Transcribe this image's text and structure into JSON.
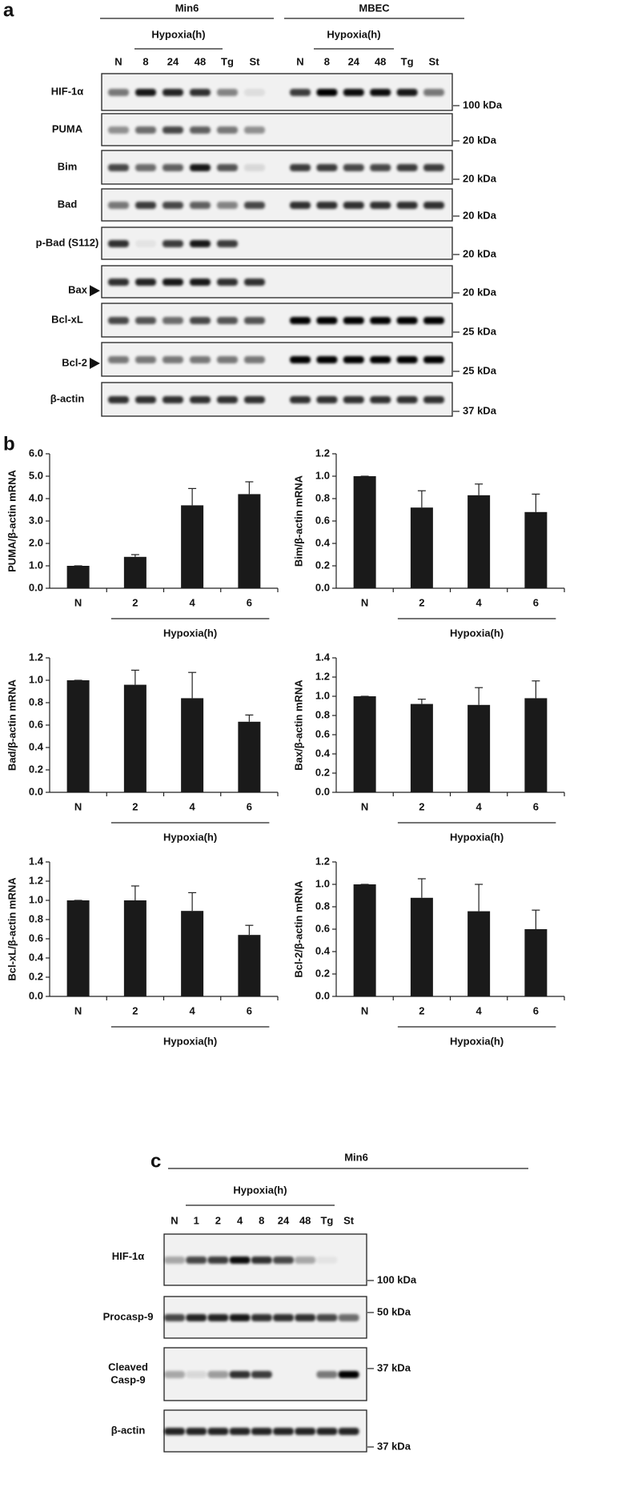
{
  "panel_a": {
    "label": "a",
    "groups": [
      {
        "name": "Min6",
        "hypoxia": "Hypoxia(h)",
        "lanes": [
          "N",
          "8",
          "24",
          "48",
          "Tg",
          "St"
        ]
      },
      {
        "name": "MBEC",
        "hypoxia": "Hypoxia(h)",
        "lanes": [
          "N",
          "8",
          "24",
          "48",
          "Tg",
          "St"
        ]
      }
    ],
    "rows": [
      {
        "label": "HIF-1α",
        "marker": "100 kDa"
      },
      {
        "label": "PUMA",
        "marker": "20 kDa"
      },
      {
        "label": "Bim",
        "marker": "20 kDa"
      },
      {
        "label": "Bad",
        "marker": "20 kDa"
      },
      {
        "label": "p-Bad (S112)",
        "marker": "20 kDa"
      },
      {
        "label": "Bax",
        "marker": "20 kDa",
        "arrow": true
      },
      {
        "label": "Bcl-xL",
        "marker": "25 kDa"
      },
      {
        "label": "Bcl-2",
        "marker": "25 kDa",
        "arrow": true
      },
      {
        "label": "β-actin",
        "marker": "37 kDa"
      }
    ]
  },
  "panel_b": {
    "label": "b"
  },
  "chart_data": [
    {
      "type": "bar",
      "ylabel": "PUMA/β-actin mRNA",
      "categories": [
        "N",
        "2",
        "4",
        "6"
      ],
      "group_label": "Hypoxia(h)",
      "values": [
        1.0,
        1.4,
        3.7,
        4.2
      ],
      "errors": [
        0,
        0.1,
        0.75,
        0.55
      ],
      "color": "#1a1a1a",
      "ylim": [
        0,
        6
      ],
      "yticks": [
        {
          "value": 0,
          "label": "0.0"
        },
        {
          "value": 1,
          "label": "1.0"
        },
        {
          "value": 2,
          "label": "2.0"
        },
        {
          "value": 3,
          "label": "3.0"
        },
        {
          "value": 4,
          "label": "4.0"
        },
        {
          "value": 5,
          "label": "5.0"
        },
        {
          "value": 6,
          "label": "6.0"
        }
      ]
    },
    {
      "type": "bar",
      "ylabel": "Bim/β-actin mRNA",
      "categories": [
        "N",
        "2",
        "4",
        "6"
      ],
      "group_label": "Hypoxia(h)",
      "values": [
        1.0,
        0.72,
        0.83,
        0.68
      ],
      "errors": [
        0,
        0.15,
        0.1,
        0.16
      ],
      "color": "#1a1a1a",
      "ylim": [
        0,
        1.2
      ],
      "yticks": [
        {
          "value": 0,
          "label": "0.0"
        },
        0.2,
        0.4,
        0.6,
        0.8,
        {
          "value": 1,
          "label": "1.0"
        },
        1.2
      ]
    },
    {
      "type": "bar",
      "ylabel": "Bad/β-actin mRNA",
      "categories": [
        "N",
        "2",
        "4",
        "6"
      ],
      "group_label": "Hypoxia(h)",
      "values": [
        1.0,
        0.96,
        0.84,
        0.63
      ],
      "errors": [
        0,
        0.13,
        0.23,
        0.06
      ],
      "color": "#1a1a1a",
      "ylim": [
        0,
        1.2
      ],
      "yticks": [
        {
          "value": 0,
          "label": "0.0"
        },
        0.2,
        0.4,
        0.6,
        0.8,
        {
          "value": 1,
          "label": "1.0"
        },
        1.2
      ]
    },
    {
      "type": "bar",
      "ylabel": "Bax/β-actin mRNA",
      "categories": [
        "N",
        "2",
        "4",
        "6"
      ],
      "group_label": "Hypoxia(h)",
      "values": [
        1.0,
        0.92,
        0.91,
        0.98
      ],
      "errors": [
        0,
        0.05,
        0.18,
        0.18
      ],
      "color": "#1a1a1a",
      "ylim": [
        0,
        1.4
      ],
      "yticks": [
        {
          "value": 0,
          "label": "0.0"
        },
        0.2,
        0.4,
        0.6,
        0.8,
        {
          "value": 1,
          "label": "1.0"
        },
        1.2,
        1.4
      ]
    },
    {
      "type": "bar",
      "ylabel": "Bcl-xL/β-actin mRNA",
      "categories": [
        "N",
        "2",
        "4",
        "6"
      ],
      "group_label": "Hypoxia(h)",
      "values": [
        1.0,
        1.0,
        0.89,
        0.64
      ],
      "errors": [
        0,
        0.15,
        0.19,
        0.1
      ],
      "color": "#1a1a1a",
      "ylim": [
        0,
        1.4
      ],
      "yticks": [
        {
          "value": 0,
          "label": "0.0"
        },
        0.2,
        0.4,
        0.6,
        0.8,
        {
          "value": 1,
          "label": "1.0"
        },
        1.2,
        1.4
      ]
    },
    {
      "type": "bar",
      "ylabel": "Bcl-2/β-actin mRNA",
      "categories": [
        "N",
        "2",
        "4",
        "6"
      ],
      "group_label": "Hypoxia(h)",
      "values": [
        1.0,
        0.88,
        0.76,
        0.6
      ],
      "errors": [
        0,
        0.17,
        0.24,
        0.17
      ],
      "color": "#1a1a1a",
      "ylim": [
        0,
        1.2
      ],
      "yticks": [
        {
          "value": 0,
          "label": "0.0"
        },
        0.2,
        0.4,
        0.6,
        0.8,
        {
          "value": 1,
          "label": "1.0"
        },
        1.2
      ]
    }
  ],
  "panel_c": {
    "label": "c",
    "group": "Min6",
    "hypoxia": "Hypoxia(h)",
    "lanes": [
      "N",
      "1",
      "2",
      "4",
      "8",
      "24",
      "48",
      "Tg",
      "St"
    ],
    "rows": [
      {
        "label": "HIF-1α",
        "marker": "100 kDa"
      },
      {
        "label": "Procasp-9",
        "marker": "50 kDa"
      },
      {
        "label": [
          "Cleaved",
          "Casp-9"
        ],
        "marker": "37 kDa"
      },
      {
        "label": "β-actin",
        "marker": "37 kDa"
      }
    ]
  }
}
